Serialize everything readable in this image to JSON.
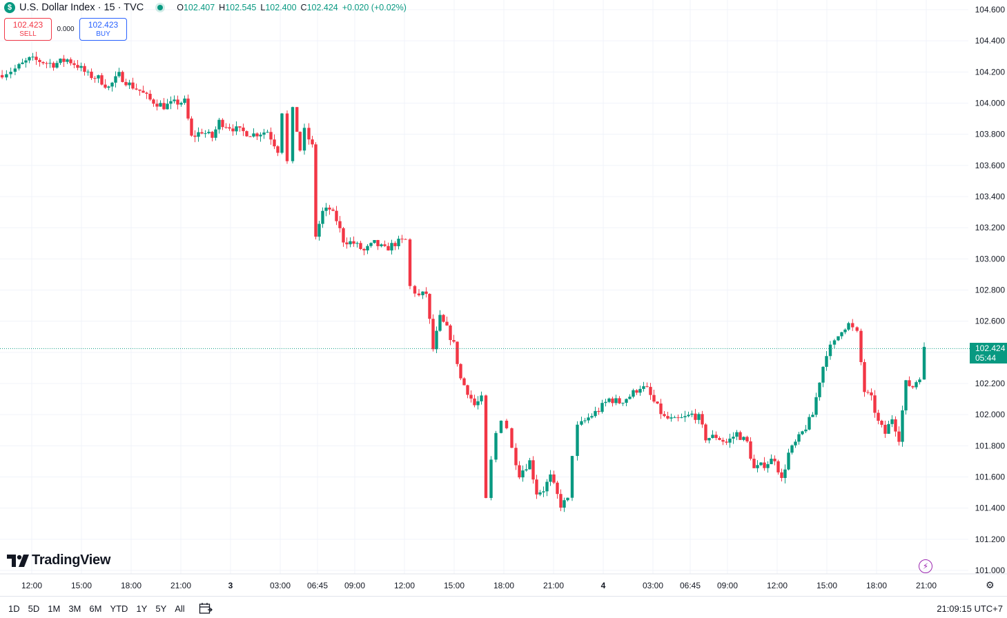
{
  "header": {
    "symbol_logo": "$",
    "title": "U.S. Dollar Index · 15 · TVC",
    "ohlc": {
      "o_key": "O",
      "o": "102.407",
      "h_key": "H",
      "h": "102.545",
      "l_key": "L",
      "l": "102.400",
      "c_key": "C",
      "c": "102.424",
      "change": "+0.020 (+0.02%)"
    }
  },
  "trade": {
    "sell_price": "102.423",
    "sell_label": "SELL",
    "spread": "0.000",
    "buy_price": "102.423",
    "buy_label": "BUY"
  },
  "last_price": {
    "value": "102.424",
    "countdown": "05:44"
  },
  "logo_text": "TradingView",
  "bottom": {
    "ranges": [
      "1D",
      "5D",
      "1M",
      "3M",
      "6M",
      "YTD",
      "1Y",
      "5Y",
      "All"
    ],
    "clock": "21:09:15 UTC+7"
  },
  "colors": {
    "up": "#089981",
    "down": "#f23645",
    "grid": "#f0f3fa",
    "sell": "#f23645",
    "buy": "#2962ff"
  },
  "icons": [
    "dollar-logo-icon",
    "live-status-icon",
    "tradingview-logo-icon",
    "lightning-icon",
    "gear-icon",
    "calendar-icon"
  ],
  "chart_data": {
    "type": "candlestick",
    "interval": "15",
    "y_ticks": [
      "104.600",
      "104.400",
      "104.200",
      "104.000",
      "103.800",
      "103.600",
      "103.400",
      "103.200",
      "103.000",
      "102.800",
      "102.600",
      "102.400",
      "102.200",
      "102.000",
      "101.800",
      "101.600",
      "101.400",
      "101.200",
      "101.000"
    ],
    "ylim": [
      101.0,
      104.6
    ],
    "x_ticks": [
      "12:00",
      "15:00",
      "18:00",
      "21:00",
      "3",
      "03:00",
      "06:45",
      "09:00",
      "12:00",
      "15:00",
      "18:00",
      "21:00",
      "4",
      "03:00",
      "06:45",
      "09:00",
      "12:00",
      "15:00",
      "18:00",
      "21:00"
    ],
    "last_price": 102.424,
    "path": [
      [
        0,
        104.18
      ],
      [
        25,
        104.22
      ],
      [
        45,
        104.28
      ],
      [
        60,
        104.27
      ],
      [
        80,
        104.25
      ],
      [
        100,
        104.28
      ],
      [
        115,
        104.24
      ],
      [
        130,
        104.18
      ],
      [
        145,
        104.16
      ],
      [
        160,
        104.1
      ],
      [
        175,
        104.18
      ],
      [
        190,
        104.12
      ],
      [
        205,
        104.08
      ],
      [
        220,
        104.02
      ],
      [
        240,
        103.98
      ],
      [
        255,
        104.0
      ],
      [
        270,
        104.01
      ],
      [
        280,
        103.78
      ],
      [
        295,
        103.82
      ],
      [
        310,
        103.78
      ],
      [
        320,
        103.88
      ],
      [
        335,
        103.85
      ],
      [
        350,
        103.82
      ],
      [
        370,
        103.8
      ],
      [
        390,
        103.82
      ],
      [
        405,
        103.7
      ],
      [
        412,
        103.95
      ],
      [
        420,
        103.62
      ],
      [
        428,
        103.95
      ],
      [
        437,
        103.7
      ],
      [
        445,
        103.82
      ],
      [
        455,
        103.72
      ],
      [
        460,
        103.15
      ],
      [
        470,
        103.3
      ],
      [
        480,
        103.32
      ],
      [
        490,
        103.25
      ],
      [
        500,
        103.12
      ],
      [
        515,
        103.1
      ],
      [
        530,
        103.05
      ],
      [
        545,
        103.1
      ],
      [
        560,
        103.06
      ],
      [
        575,
        103.1
      ],
      [
        590,
        103.12
      ],
      [
        598,
        102.82
      ],
      [
        610,
        102.76
      ],
      [
        620,
        102.78
      ],
      [
        630,
        102.42
      ],
      [
        640,
        102.62
      ],
      [
        650,
        102.55
      ],
      [
        660,
        102.45
      ],
      [
        670,
        102.23
      ],
      [
        680,
        102.15
      ],
      [
        690,
        102.06
      ],
      [
        700,
        102.1
      ],
      [
        708,
        101.45
      ],
      [
        715,
        101.7
      ],
      [
        722,
        101.88
      ],
      [
        730,
        101.98
      ],
      [
        738,
        101.92
      ],
      [
        745,
        101.78
      ],
      [
        755,
        101.62
      ],
      [
        770,
        101.7
      ],
      [
        780,
        101.5
      ],
      [
        790,
        101.52
      ],
      [
        800,
        101.6
      ],
      [
        815,
        101.42
      ],
      [
        825,
        101.45
      ],
      [
        833,
        101.75
      ],
      [
        840,
        101.92
      ],
      [
        855,
        101.98
      ],
      [
        870,
        102.03
      ],
      [
        885,
        102.1
      ],
      [
        900,
        102.08
      ],
      [
        915,
        102.12
      ],
      [
        930,
        102.18
      ],
      [
        940,
        102.16
      ],
      [
        950,
        102.08
      ],
      [
        965,
        101.98
      ],
      [
        980,
        101.96
      ],
      [
        995,
        101.98
      ],
      [
        1005,
        102.0
      ],
      [
        1015,
        101.98
      ],
      [
        1025,
        101.85
      ],
      [
        1040,
        101.86
      ],
      [
        1055,
        101.82
      ],
      [
        1070,
        101.88
      ],
      [
        1085,
        101.82
      ],
      [
        1095,
        101.65
      ],
      [
        1110,
        101.68
      ],
      [
        1125,
        101.72
      ],
      [
        1135,
        101.58
      ],
      [
        1145,
        101.75
      ],
      [
        1160,
        101.85
      ],
      [
        1170,
        101.92
      ],
      [
        1180,
        102.0
      ],
      [
        1190,
        102.22
      ],
      [
        1200,
        102.4
      ],
      [
        1212,
        102.46
      ],
      [
        1222,
        102.55
      ],
      [
        1232,
        102.58
      ],
      [
        1245,
        102.52
      ],
      [
        1255,
        102.15
      ],
      [
        1265,
        102.1
      ],
      [
        1275,
        101.95
      ],
      [
        1285,
        101.88
      ],
      [
        1295,
        101.98
      ],
      [
        1305,
        101.85
      ],
      [
        1315,
        102.2
      ],
      [
        1325,
        102.18
      ],
      [
        1335,
        102.25
      ],
      [
        1343,
        102.42
      ]
    ]
  }
}
